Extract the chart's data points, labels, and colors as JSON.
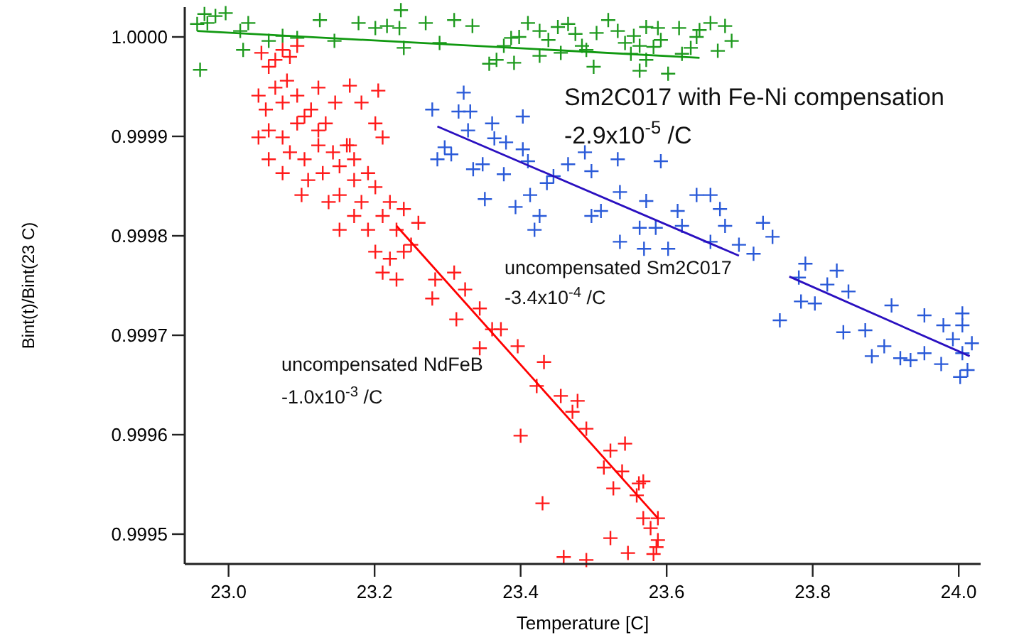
{
  "chart_data": {
    "type": "scatter",
    "xlabel": "Temperature [C]",
    "ylabel": "Bint(t)/Bint(23 C)",
    "xlim": [
      22.94,
      24.03
    ],
    "ylim": [
      0.99947,
      1.00003
    ],
    "xticks": [
      {
        "value": 23,
        "label": "23.0"
      },
      {
        "value": 23.2,
        "label": "23.2"
      },
      {
        "value": 23.4,
        "label": "23.4"
      },
      {
        "value": 23.6,
        "label": "23.6"
      },
      {
        "value": 23.8,
        "label": "23.8"
      },
      {
        "value": 24,
        "label": "24.0"
      }
    ],
    "yticks": [
      {
        "value": 0.9995,
        "label": "0.9995"
      },
      {
        "value": 0.9996,
        "label": "0.9996"
      },
      {
        "value": 0.9997,
        "label": "0.9997"
      },
      {
        "value": 0.9998,
        "label": "0.9998"
      },
      {
        "value": 0.9999,
        "label": "0.9999"
      },
      {
        "value": 1,
        "label": "1.0000"
      }
    ],
    "grid": false,
    "marker": "cross",
    "annotations": [
      "-2.9x10$^{-5}$ /C",
      "-3.4x10$^{-4}$ /C",
      "-1.0x10$^{-3}$ /C"
    ],
    "series": [
      {
        "name": "Sm2C017 with Fe-Ni compensation",
        "color": "#1f9a1f",
        "x": [
          22.957,
          22.967,
          22.982,
          22.996,
          22.961,
          22.971,
          23.016,
          23.02,
          23.027,
          23.055,
          23.074,
          23.094,
          23.125,
          23.145,
          23.178,
          23.201,
          23.217,
          23.234,
          23.24,
          23.27,
          23.236,
          23.289,
          23.309,
          23.334,
          23.357,
          23.367,
          23.377,
          23.387,
          23.391,
          23.398,
          23.41,
          23.426,
          23.426,
          23.438,
          23.451,
          23.455,
          23.465,
          23.475,
          23.484,
          23.49,
          23.5,
          23.504,
          23.52,
          23.533,
          23.543,
          23.551,
          23.555,
          23.563,
          23.563,
          23.572,
          23.572,
          23.582,
          23.588,
          23.592,
          23.602,
          23.617,
          23.621,
          23.633,
          23.641,
          23.645,
          23.66,
          23.67,
          23.68,
          23.689
        ],
        "values": [
          1.000013,
          1.000023,
          1.000021,
          1.000024,
          0.999967,
          1.000014,
          1.000006,
          0.999987,
          1.000014,
          0.999996,
          1.000001,
          0.999999,
          1.000017,
          0.999996,
          1.000014,
          1.000009,
          1.000011,
          1.000009,
          0.999989,
          1.000014,
          1.000027,
          0.999994,
          1.000017,
          1.000011,
          0.999973,
          0.999977,
          0.999991,
          0.999999,
          0.999974,
          1.0,
          1.000014,
          1.000006,
          0.999981,
          0.999997,
          1.00001,
          0.999984,
          1.000013,
          1.000003,
          0.999991,
          0.999987,
          0.99997,
          1.000004,
          1.000017,
          1.000006,
          0.999994,
          0.999983,
          1.000001,
          0.999966,
          0.999991,
          1.00001,
          0.999977,
          0.99999,
          1.000009,
          0.999997,
          0.999963,
          1.000009,
          0.999983,
          0.999989,
          1.0,
          1.000007,
          1.000014,
          0.999986,
          1.000011,
          0.999996
        ]
      },
      {
        "type": "line",
        "marker": "none",
        "color": "#119911",
        "x": [
          22.957,
          23.645
        ],
        "values": [
          1.000006,
          0.999979
        ]
      },
      {
        "name": "uncompensated Sm2C017",
        "color": "#2a5ad8",
        "x": [
          23.279,
          23.322,
          23.315,
          23.331,
          23.361,
          23.403,
          23.328,
          23.296,
          23.305,
          23.286,
          23.364,
          23.38,
          23.403,
          23.41,
          23.348,
          23.335,
          23.377,
          23.436,
          23.465,
          23.488,
          23.497,
          23.533,
          23.592,
          23.445,
          23.413,
          23.351,
          23.393,
          23.426,
          23.419,
          23.497,
          23.51,
          23.536,
          23.572,
          23.615,
          23.641,
          23.66,
          23.673,
          23.68,
          23.621,
          23.585,
          23.563,
          23.536,
          23.569,
          23.602,
          23.66,
          23.699,
          23.732,
          23.745,
          23.719,
          23.79,
          23.833,
          23.849,
          23.82,
          23.784,
          23.803,
          23.755,
          23.842,
          23.872,
          23.908,
          23.953,
          23.979,
          24.005,
          24.005,
          24.018,
          23.992,
          23.898,
          23.881,
          23.92,
          23.934,
          23.953,
          23.976,
          24.005,
          24.012,
          24.002,
          23.781
        ],
        "values": [
          0.999927,
          0.999944,
          0.999925,
          0.999925,
          0.999913,
          0.99992,
          0.999906,
          0.999889,
          0.999882,
          0.999877,
          0.999898,
          0.999894,
          0.999887,
          0.999875,
          0.999872,
          0.999867,
          0.999862,
          0.999853,
          0.999872,
          0.999884,
          0.999865,
          0.999877,
          0.999875,
          0.99986,
          0.999841,
          0.999837,
          0.999829,
          0.99982,
          0.999806,
          0.99982,
          0.999825,
          0.999844,
          0.999835,
          0.999825,
          0.999841,
          0.999841,
          0.999827,
          0.99981,
          0.99981,
          0.999808,
          0.999808,
          0.999794,
          0.999787,
          0.999787,
          0.999794,
          0.999791,
          0.999813,
          0.999799,
          0.999782,
          0.999772,
          0.999765,
          0.999744,
          0.999751,
          0.999734,
          0.999732,
          0.999715,
          0.999703,
          0.999705,
          0.99973,
          0.99972,
          0.99971,
          0.999722,
          0.99971,
          0.999692,
          0.999696,
          0.999689,
          0.999679,
          0.999677,
          0.999675,
          0.999682,
          0.999671,
          0.999682,
          0.999665,
          0.999658,
          0.999758
        ]
      },
      {
        "type": "line",
        "marker": "none",
        "color": "#2a10c0",
        "x": [
          23.286,
          23.699,
          23.73,
          23.768,
          24.015
        ],
        "values": [
          0.99991,
          0.99978,
          null,
          0.999759,
          0.999679
        ]
      },
      {
        "name": "uncompensated NdFeB",
        "color": "#ff1a1a",
        "x": [
          23.045,
          23.055,
          23.064,
          23.074,
          23.084,
          23.094,
          23.08,
          23.064,
          23.041,
          23.051,
          23.074,
          23.094,
          23.104,
          23.055,
          23.074,
          23.094,
          23.113,
          23.123,
          23.133,
          23.084,
          23.104,
          23.123,
          23.143,
          23.152,
          23.129,
          23.109,
          23.162,
          23.172,
          23.152,
          23.182,
          23.191,
          23.201,
          23.211,
          23.191,
          23.172,
          23.221,
          23.23,
          23.24,
          23.201,
          23.221,
          23.24,
          23.25,
          23.23,
          23.211,
          23.26,
          23.172,
          23.166,
          23.146,
          23.205,
          23.201,
          23.182,
          23.211,
          23.041,
          23.055,
          23.074,
          23.1,
          23.137,
          23.152,
          23.123,
          23.166,
          23.279,
          23.283,
          23.309,
          23.324,
          23.312,
          23.344,
          23.361,
          23.373,
          23.344,
          23.396,
          23.432,
          23.422,
          23.455,
          23.478,
          23.471,
          23.49,
          23.4,
          23.523,
          23.543,
          23.514,
          23.539,
          23.527,
          23.562,
          23.568,
          23.559,
          23.43,
          23.588,
          23.568,
          23.578,
          23.588,
          23.523,
          23.547,
          23.459,
          23.49,
          23.582,
          23.586
        ],
        "values": [
          0.999984,
          0.99997,
          0.999977,
          0.999987,
          0.99998,
          0.999991,
          0.999956,
          0.999949,
          0.999941,
          0.999927,
          0.999934,
          0.999941,
          0.99992,
          0.999906,
          0.999899,
          0.999913,
          0.999927,
          0.999906,
          0.999913,
          0.999884,
          0.999877,
          0.999891,
          0.999884,
          0.99987,
          0.999863,
          0.999856,
          0.999891,
          0.999856,
          0.999841,
          0.999834,
          0.999863,
          0.999849,
          0.99982,
          0.999806,
          0.99982,
          0.999834,
          0.999806,
          0.999827,
          0.999784,
          0.999777,
          0.999784,
          0.999791,
          0.999756,
          0.999763,
          0.999813,
          0.999877,
          0.999891,
          0.999934,
          0.999946,
          0.999913,
          0.999934,
          0.999899,
          0.999899,
          0.999877,
          0.999863,
          0.999841,
          0.999834,
          0.999806,
          0.999949,
          0.999951,
          0.999737,
          0.999756,
          0.999763,
          0.999746,
          0.999716,
          0.999727,
          0.999706,
          0.999706,
          0.999687,
          0.999689,
          0.999673,
          0.999649,
          0.999639,
          0.999634,
          0.999623,
          0.999606,
          0.999599,
          0.999584,
          0.999591,
          0.999567,
          0.999563,
          0.999546,
          0.999551,
          0.999553,
          0.999539,
          0.999531,
          0.999516,
          0.999516,
          0.999506,
          0.999494,
          0.999496,
          0.999481,
          0.999477,
          0.999474,
          0.99948,
          0.999487
        ]
      },
      {
        "type": "line",
        "marker": "none",
        "color": "#ff0000",
        "x": [
          23.23,
          23.588
        ],
        "values": [
          0.99981,
          0.999516
        ]
      }
    ]
  }
}
